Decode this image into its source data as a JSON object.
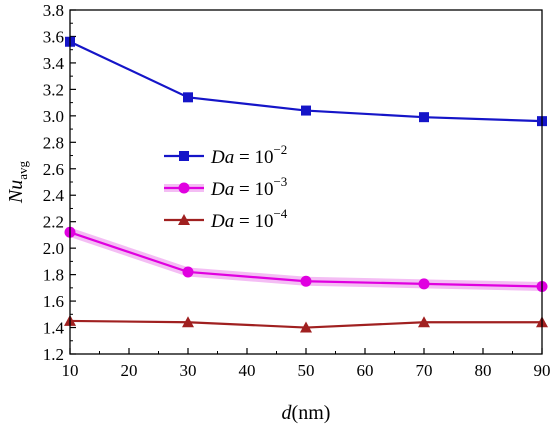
{
  "chart_data": {
    "type": "line",
    "xlabel_var": "d",
    "xlabel_unit": "(nm)",
    "ylabel_var": "Nu",
    "ylabel_sub": "avg",
    "x": [
      10,
      30,
      50,
      70,
      90
    ],
    "xlim": [
      10,
      90
    ],
    "ylim": [
      1.2,
      3.8
    ],
    "xticks": [
      "10",
      "20",
      "30",
      "40",
      "50",
      "60",
      "70",
      "80",
      "90"
    ],
    "yticks": [
      "1.2",
      "1.4",
      "1.6",
      "1.8",
      "2.0",
      "2.2",
      "2.4",
      "2.6",
      "2.8",
      "3.0",
      "3.2",
      "3.4",
      "3.6",
      "3.8"
    ],
    "legend_placement": "left-center",
    "grid": false,
    "series": [
      {
        "name_var": "Da",
        "name_eq": " = 10",
        "name_exp": "−2",
        "values": [
          3.56,
          3.14,
          3.04,
          2.99,
          2.96
        ],
        "color": "#1515c8",
        "marker": "square"
      },
      {
        "name_var": "Da",
        "name_eq": " = 10",
        "name_exp": "−3",
        "values": [
          2.12,
          1.82,
          1.75,
          1.73,
          1.71
        ],
        "color": "#e000e0",
        "marker": "circle"
      },
      {
        "name_var": "Da",
        "name_eq": " = 10",
        "name_exp": "−4",
        "values": [
          1.45,
          1.44,
          1.4,
          1.44,
          1.44
        ],
        "color": "#a02020",
        "marker": "triangle"
      }
    ]
  }
}
